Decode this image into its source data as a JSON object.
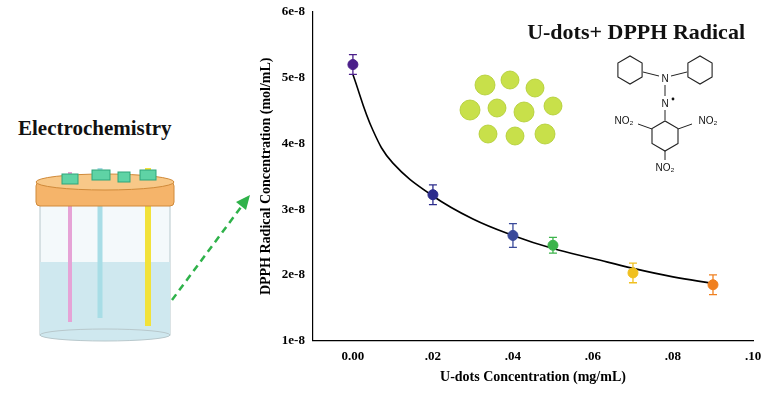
{
  "chart_data": {
    "type": "scatter",
    "annotations": [
      "U-dots+ DPPH Radical"
    ],
    "x_label": "U-dots Concentration (mg/mL)",
    "y_label": "DPPH Radical Concentration (mol/mL)",
    "series": [
      {
        "type": "scatter",
        "marker": "circle",
        "colors": [
          "#4b1f8a",
          "#2c2c8c",
          "#3a4a9a",
          "#3cb44b",
          "#f0c020",
          "#f08020"
        ],
        "x": [
          0,
          0.02,
          0.04,
          0.05,
          0.07,
          0.09
        ],
        "values": [
          5.2e-08,
          3.22e-08,
          2.6e-08,
          2.45e-08,
          2.03e-08,
          1.85e-08
        ],
        "errors": [
          1.5e-09,
          1.5e-09,
          1.8e-09,
          1.2e-09,
          1.5e-09,
          1.5e-09
        ]
      },
      {
        "type": "line",
        "color": "#000000",
        "line_style": "solid",
        "x": [
          0,
          0.005,
          0.01,
          0.02,
          0.03,
          0.04,
          0.05,
          0.06,
          0.07,
          0.08,
          0.09
        ],
        "values": [
          5.05e-08,
          4.2e-08,
          3.7e-08,
          3.2e-08,
          2.85e-08,
          2.6e-08,
          2.4e-08,
          2.25e-08,
          2.1e-08,
          1.97e-08,
          1.87e-08
        ]
      }
    ],
    "xlim": [
      -0.01,
      0.1
    ],
    "xticks": [
      {
        "value": 0,
        "label": "0.00"
      },
      {
        "value": 0.02,
        "label": ".02"
      },
      {
        "value": 0.04,
        "label": ".04"
      },
      {
        "value": 0.06,
        "label": ".06"
      },
      {
        "value": 0.08,
        "label": ".08"
      },
      {
        "value": 0.1,
        "label": ".10"
      }
    ],
    "ylim": [
      1e-08,
      6e-08
    ],
    "yticks": [
      {
        "value": 1e-08,
        "label": "1e-8"
      },
      {
        "value": 2e-08,
        "label": "2e-8"
      },
      {
        "value": 3e-08,
        "label": "3e-8"
      },
      {
        "value": 4e-08,
        "label": "4e-8"
      },
      {
        "value": 5e-08,
        "label": "5e-8"
      },
      {
        "value": 6e-08,
        "label": "6e-8"
      }
    ],
    "grid": false
  },
  "diagram": {
    "title": "Electrochemistry"
  },
  "molecule": {
    "atoms": [
      "N",
      "N",
      "NO₂",
      "NO₂",
      "NO₂"
    ]
  }
}
